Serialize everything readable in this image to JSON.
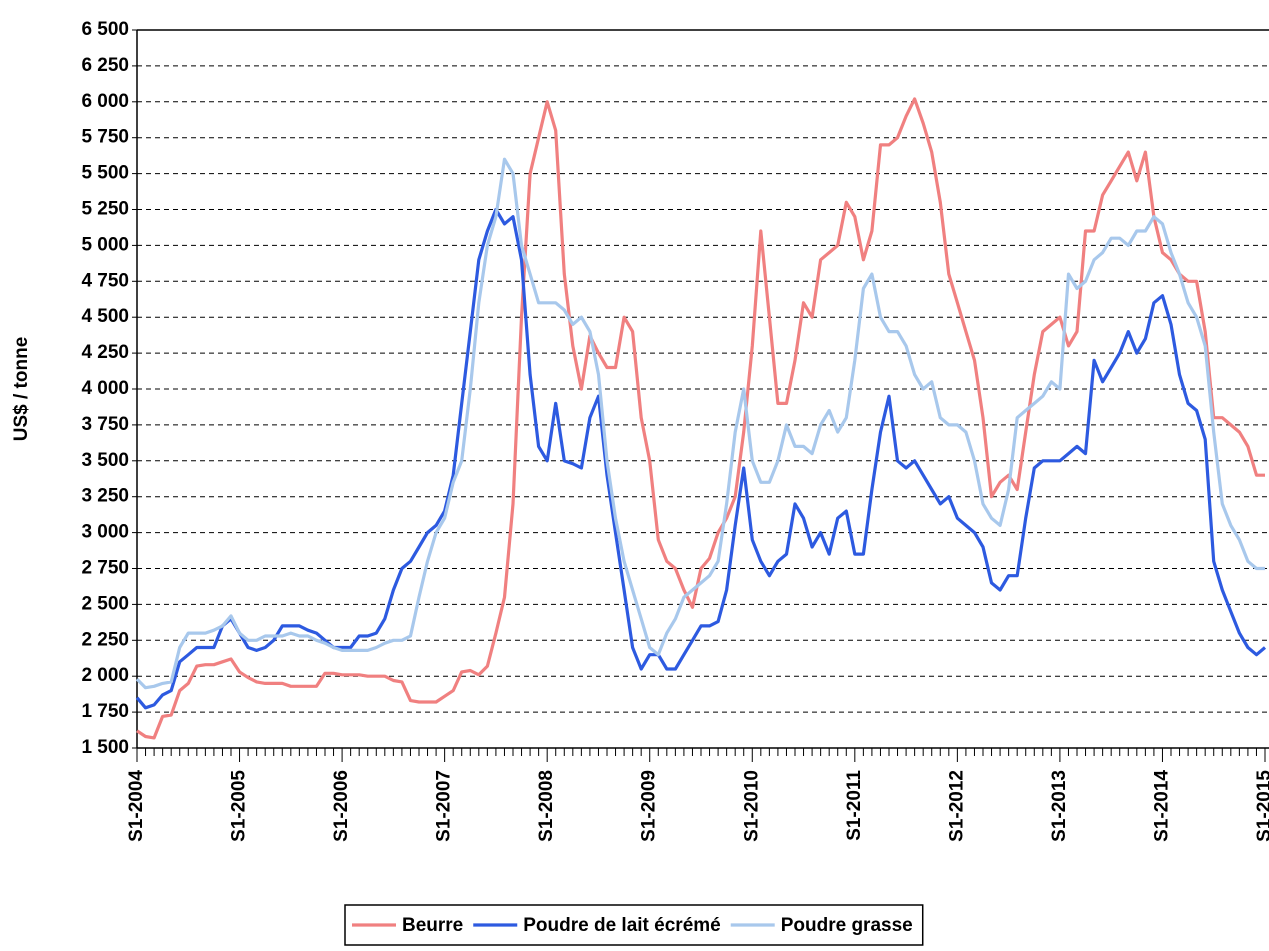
{
  "chart_data": {
    "type": "line",
    "y_label": "US$ / tonne",
    "categories": [
      "S1-2004",
      null,
      null,
      null,
      null,
      null,
      null,
      null,
      null,
      null,
      null,
      null,
      "S1-2005",
      null,
      null,
      null,
      null,
      null,
      null,
      null,
      null,
      null,
      null,
      null,
      "S1-2006",
      null,
      null,
      null,
      null,
      null,
      null,
      null,
      null,
      null,
      null,
      null,
      "S1-2007",
      null,
      null,
      null,
      null,
      null,
      null,
      null,
      null,
      null,
      null,
      null,
      "S1-2008",
      null,
      null,
      null,
      null,
      null,
      null,
      null,
      null,
      null,
      null,
      null,
      "S1-2009",
      null,
      null,
      null,
      null,
      null,
      null,
      null,
      null,
      null,
      null,
      null,
      "S1-2010",
      null,
      null,
      null,
      null,
      null,
      null,
      null,
      null,
      null,
      null,
      null,
      "S1-2011",
      null,
      null,
      null,
      null,
      null,
      null,
      null,
      null,
      null,
      null,
      null,
      "S1-2012",
      null,
      null,
      null,
      null,
      null,
      null,
      null,
      null,
      null,
      null,
      null,
      "S1-2013",
      null,
      null,
      null,
      null,
      null,
      null,
      null,
      null,
      null,
      null,
      null,
      "S1-2014",
      null,
      null,
      null,
      null,
      null,
      null,
      null,
      null,
      null,
      null,
      null,
      "S1-2015"
    ],
    "series": [
      {
        "name": "Beurre",
        "color": "#f08080",
        "values": [
          1620,
          1580,
          1570,
          1720,
          1730,
          1900,
          1950,
          2070,
          2080,
          2080,
          2100,
          2120,
          2030,
          1990,
          1960,
          1950,
          1950,
          1950,
          1930,
          1930,
          1930,
          1930,
          2020,
          2020,
          2010,
          2010,
          2010,
          2000,
          2000,
          2000,
          1970,
          1960,
          1830,
          1820,
          1820,
          1820,
          1860,
          1900,
          2030,
          2040,
          2010,
          2070,
          2300,
          2550,
          3200,
          4500,
          5500,
          5750,
          6000,
          5800,
          4800,
          4300,
          4000,
          4370,
          4250,
          4150,
          4150,
          4500,
          4400,
          3800,
          3500,
          2950,
          2800,
          2750,
          2600,
          2480,
          2750,
          2820,
          3000,
          3100,
          3250,
          3700,
          4300,
          5100,
          4500,
          3900,
          3900,
          4200,
          4600,
          4500,
          4900,
          4950,
          5000,
          5300,
          5200,
          4900,
          5100,
          5700,
          5700,
          5750,
          5900,
          6020,
          5850,
          5650,
          5300,
          4800,
          4600,
          4400,
          4200,
          3800,
          3250,
          3350,
          3400,
          3300,
          3700,
          4100,
          4400,
          4450,
          4500,
          4300,
          4400,
          5100,
          5100,
          5350,
          5450,
          5550,
          5650,
          5450,
          5650,
          5200,
          4950,
          4900,
          4800,
          4750,
          4750,
          4400,
          3800,
          3800,
          3750,
          3700,
          3600,
          3400,
          3400
        ]
      },
      {
        "name": "Poudre de lait écrémé",
        "color": "#2d5ae0",
        "values": [
          1850,
          1780,
          1800,
          1870,
          1900,
          2100,
          2150,
          2200,
          2200,
          2200,
          2350,
          2400,
          2300,
          2200,
          2180,
          2200,
          2250,
          2350,
          2350,
          2350,
          2320,
          2300,
          2250,
          2200,
          2200,
          2200,
          2280,
          2280,
          2300,
          2400,
          2600,
          2750,
          2800,
          2900,
          3000,
          3050,
          3150,
          3400,
          3900,
          4400,
          4900,
          5100,
          5250,
          5150,
          5200,
          4900,
          4100,
          3600,
          3500,
          3900,
          3500,
          3480,
          3450,
          3800,
          3950,
          3400,
          3000,
          2600,
          2200,
          2050,
          2150,
          2150,
          2050,
          2050,
          2150,
          2250,
          2350,
          2350,
          2380,
          2600,
          3050,
          3450,
          2950,
          2800,
          2700,
          2800,
          2850,
          3200,
          3100,
          2900,
          3000,
          2850,
          3100,
          3150,
          2850,
          2850,
          3300,
          3700,
          3950,
          3500,
          3450,
          3500,
          3400,
          3300,
          3200,
          3250,
          3100,
          3050,
          3000,
          2900,
          2650,
          2600,
          2700,
          2700,
          3100,
          3450,
          3500,
          3500,
          3500,
          3550,
          3600,
          3550,
          4200,
          4050,
          4150,
          4250,
          4400,
          4250,
          4350,
          4600,
          4650,
          4450,
          4100,
          3900,
          3850,
          3650,
          2800,
          2600,
          2450,
          2300,
          2200,
          2150,
          2200
        ]
      },
      {
        "name": "Poudre grasse",
        "color": "#a8c8ec",
        "values": [
          1980,
          1920,
          1930,
          1950,
          1960,
          2200,
          2300,
          2300,
          2300,
          2320,
          2350,
          2420,
          2300,
          2250,
          2250,
          2280,
          2280,
          2280,
          2300,
          2280,
          2280,
          2250,
          2230,
          2200,
          2180,
          2180,
          2180,
          2180,
          2200,
          2230,
          2250,
          2250,
          2280,
          2550,
          2800,
          3000,
          3100,
          3350,
          3500,
          4000,
          4600,
          5000,
          5200,
          5600,
          5500,
          5000,
          4800,
          4600,
          4600,
          4600,
          4550,
          4450,
          4500,
          4400,
          4100,
          3500,
          3100,
          2800,
          2600,
          2400,
          2200,
          2150,
          2300,
          2400,
          2550,
          2600,
          2650,
          2700,
          2800,
          3200,
          3700,
          4000,
          3500,
          3350,
          3350,
          3500,
          3750,
          3600,
          3600,
          3550,
          3750,
          3850,
          3700,
          3800,
          4200,
          4700,
          4800,
          4500,
          4400,
          4400,
          4300,
          4100,
          4000,
          4050,
          3800,
          3750,
          3750,
          3700,
          3500,
          3200,
          3100,
          3050,
          3300,
          3800,
          3850,
          3900,
          3950,
          4050,
          4000,
          4800,
          4700,
          4750,
          4900,
          4950,
          5050,
          5050,
          5000,
          5100,
          5100,
          5200,
          5150,
          4950,
          4800,
          4600,
          4500,
          4300,
          3700,
          3200,
          3050,
          2950,
          2800,
          2750,
          2750
        ]
      }
    ],
    "ylim": [
      1500,
      6500
    ],
    "yticks": [
      {
        "value": 1500,
        "label": "1 500"
      },
      {
        "value": 1750,
        "label": "1 750"
      },
      {
        "value": 2000,
        "label": "2 000"
      },
      {
        "value": 2250,
        "label": "2 250"
      },
      {
        "value": 2500,
        "label": "2 500"
      },
      {
        "value": 2750,
        "label": "2 750"
      },
      {
        "value": 3000,
        "label": "3 000"
      },
      {
        "value": 3250,
        "label": "3 250"
      },
      {
        "value": 3500,
        "label": "3 500"
      },
      {
        "value": 3750,
        "label": "3 750"
      },
      {
        "value": 4000,
        "label": "4 000"
      },
      {
        "value": 4250,
        "label": "4 250"
      },
      {
        "value": 4500,
        "label": "4 500"
      },
      {
        "value": 4750,
        "label": "4 750"
      },
      {
        "value": 5000,
        "label": "5 000"
      },
      {
        "value": 5250,
        "label": "5 250"
      },
      {
        "value": 5500,
        "label": "5 500"
      },
      {
        "value": 5750,
        "label": "5 750"
      },
      {
        "value": 6000,
        "label": "6 000"
      },
      {
        "value": 6250,
        "label": "6 250"
      },
      {
        "value": 6500,
        "label": "6 500"
      }
    ],
    "grid": true,
    "legend": "bottom"
  }
}
